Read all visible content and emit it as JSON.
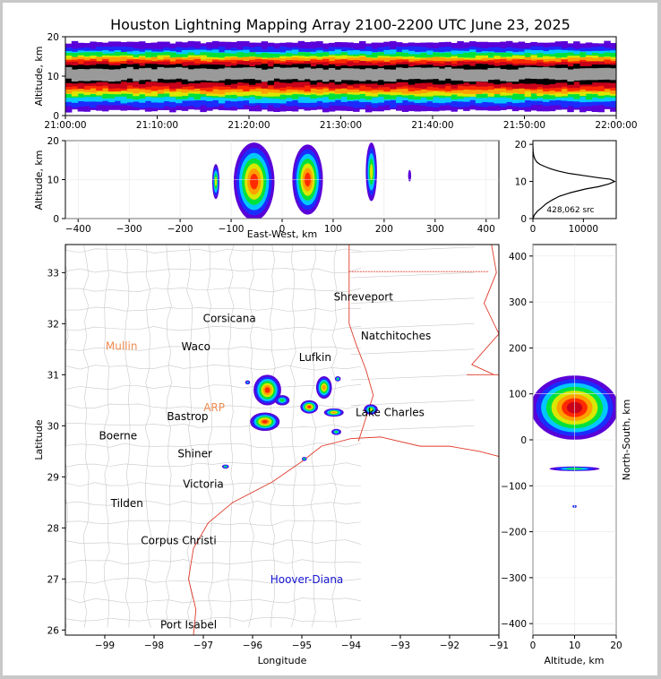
{
  "title": "Houston Lightning Mapping Array 2100-2200 UTC June 23, 2025",
  "colors": {
    "frame": "#c8c8c8",
    "density_scale": [
      "#5a00d8",
      "#1b2cff",
      "#00c8ff",
      "#00e23a",
      "#d8e800",
      "#ff9f00",
      "#ff2a00",
      "#c8001a",
      "#000000",
      "#9a9a9a"
    ],
    "city_black": "#000000",
    "city_orange": "#f08c50",
    "city_blue": "#1414d2",
    "state_border": "#e03a2a",
    "county_lines": "#c9c9c9"
  },
  "chart_data": [
    {
      "id": "time-height",
      "type": "heatmap",
      "xlabel": "",
      "ylabel": "Altitude, km",
      "x_ticks": [
        "21:00:00",
        "21:10:00",
        "21:20:00",
        "21:30:00",
        "21:40:00",
        "21:50:00",
        "22:00:00"
      ],
      "xlim": [
        "21:00:00",
        "22:00:00"
      ],
      "y_ticks": [
        0,
        10,
        20
      ],
      "ylim": [
        0,
        20
      ],
      "bands": [
        {
          "from": 1.2,
          "to": 18.6,
          "level": 0
        },
        {
          "from": 2.3,
          "to": 17.2,
          "level": 1
        },
        {
          "from": 3.5,
          "to": 16.4,
          "level": 2
        },
        {
          "from": 4.4,
          "to": 15.8,
          "level": 3
        },
        {
          "from": 5.2,
          "to": 15.0,
          "level": 4
        },
        {
          "from": 5.8,
          "to": 14.6,
          "level": 5
        },
        {
          "from": 6.5,
          "to": 14.0,
          "level": 6
        },
        {
          "from": 7.2,
          "to": 13.5,
          "level": 7
        },
        {
          "from": 8.2,
          "to": 12.8,
          "level": 8
        },
        {
          "from": 9.0,
          "to": 12.0,
          "level": 9
        }
      ]
    },
    {
      "id": "ew-altitude",
      "type": "heatmap",
      "xlabel": "East-West, km",
      "ylabel": "Altitude, km",
      "x_ticks": [
        -400,
        -300,
        -200,
        -100,
        0,
        100,
        200,
        300,
        400
      ],
      "xlim": [
        -425,
        425
      ],
      "y_ticks": [
        0,
        10,
        20
      ],
      "ylim": [
        0,
        20
      ],
      "cells": [
        {
          "x": -130,
          "y": 9.5,
          "w": 14,
          "h": 9,
          "level": 4
        },
        {
          "x": -55,
          "y": 9.5,
          "w": 80,
          "h": 20,
          "level": 6
        },
        {
          "x": 50,
          "y": 10,
          "w": 60,
          "h": 18,
          "level": 6
        },
        {
          "x": 175,
          "y": 12,
          "w": 22,
          "h": 15,
          "level": 4
        },
        {
          "x": 250,
          "y": 11,
          "w": 6,
          "h": 3,
          "level": 0
        }
      ]
    },
    {
      "id": "altitude-histogram",
      "type": "line",
      "xlabel": "",
      "ylabel": "",
      "x_ticks": [
        0,
        10000
      ],
      "xlim": [
        0,
        16500
      ],
      "y_ticks": [
        0,
        10,
        20
      ],
      "ylim": [
        0,
        21
      ],
      "annotation": "428,062 src",
      "x": [
        0,
        300,
        900,
        1800,
        2600,
        3800,
        5200,
        7500,
        10500,
        13000,
        15000,
        16200,
        15300,
        13000,
        10000,
        7000,
        5000,
        3500,
        2400,
        1400,
        800,
        400,
        150,
        40,
        5
      ],
      "y": [
        0,
        1,
        2,
        3,
        4,
        5,
        6,
        7,
        8,
        8.6,
        9.3,
        10,
        10.6,
        11,
        11.6,
        12.2,
        12.8,
        13.4,
        14,
        14.6,
        15.2,
        16,
        17,
        18,
        19.5
      ]
    },
    {
      "id": "plan-view-map",
      "type": "scatter",
      "xlabel": "Longitude",
      "ylabel": "Latitude",
      "x_ticks": [
        -99,
        -98,
        -97,
        -96,
        -95,
        -94,
        -93,
        -92,
        -91
      ],
      "xlim": [
        -99.8,
        -91
      ],
      "y_ticks": [
        26,
        27,
        28,
        29,
        30,
        31,
        32,
        33
      ],
      "ylim": [
        25.9,
        33.55
      ],
      "storms": [
        {
          "lon": -95.7,
          "lat": 30.7,
          "rx": 0.28,
          "ry": 0.3,
          "level": 6
        },
        {
          "lon": -95.75,
          "lat": 30.08,
          "rx": 0.3,
          "ry": 0.18,
          "level": 6
        },
        {
          "lon": -95.4,
          "lat": 30.5,
          "rx": 0.15,
          "ry": 0.1,
          "level": 3
        },
        {
          "lon": -94.85,
          "lat": 30.37,
          "rx": 0.18,
          "ry": 0.13,
          "level": 6
        },
        {
          "lon": -94.55,
          "lat": 30.75,
          "rx": 0.16,
          "ry": 0.22,
          "level": 5
        },
        {
          "lon": -94.35,
          "lat": 30.26,
          "rx": 0.2,
          "ry": 0.08,
          "level": 5
        },
        {
          "lon": -93.6,
          "lat": 30.32,
          "rx": 0.14,
          "ry": 0.1,
          "level": 4
        },
        {
          "lon": -94.27,
          "lat": 30.92,
          "rx": 0.06,
          "ry": 0.05,
          "level": 3
        },
        {
          "lon": -94.3,
          "lat": 29.88,
          "rx": 0.1,
          "ry": 0.06,
          "level": 3
        },
        {
          "lon": -96.55,
          "lat": 29.2,
          "rx": 0.07,
          "ry": 0.04,
          "level": 3
        },
        {
          "lon": -96.1,
          "lat": 30.85,
          "rx": 0.05,
          "ry": 0.04,
          "level": 2
        },
        {
          "lon": -94.95,
          "lat": 29.35,
          "rx": 0.05,
          "ry": 0.04,
          "level": 3
        }
      ],
      "cities": [
        {
          "name": "Shreveport",
          "lon": -93.75,
          "lat": 32.52,
          "color": "black"
        },
        {
          "name": "Corsicana",
          "lon": -96.47,
          "lat": 32.1,
          "color": "black"
        },
        {
          "name": "Mullin",
          "lon": -98.66,
          "lat": 31.56,
          "color": "orange"
        },
        {
          "name": "Waco",
          "lon": -97.15,
          "lat": 31.55,
          "color": "black"
        },
        {
          "name": "Natchitoches",
          "lon": -93.09,
          "lat": 31.76,
          "color": "black"
        },
        {
          "name": "Lufkin",
          "lon": -94.73,
          "lat": 31.34,
          "color": "black"
        },
        {
          "name": "ARP",
          "lon": -96.78,
          "lat": 30.36,
          "color": "orange"
        },
        {
          "name": "Bastrop",
          "lon": -97.32,
          "lat": 30.18,
          "color": "black"
        },
        {
          "name": "Lake Charles",
          "lon": -93.21,
          "lat": 30.26,
          "color": "black"
        },
        {
          "name": "Boerne",
          "lon": -98.73,
          "lat": 29.8,
          "color": "black"
        },
        {
          "name": "Shiner",
          "lon": -97.17,
          "lat": 29.45,
          "color": "black"
        },
        {
          "name": "Victoria",
          "lon": -97.0,
          "lat": 28.86,
          "color": "black"
        },
        {
          "name": "Tilden",
          "lon": -98.55,
          "lat": 28.48,
          "color": "black"
        },
        {
          "name": "Corpus Christi",
          "lon": -97.5,
          "lat": 27.75,
          "color": "black"
        },
        {
          "name": "Hoover-Diana",
          "lon": -94.9,
          "lat": 26.99,
          "color": "blue"
        },
        {
          "name": "Port Isabel",
          "lon": -97.3,
          "lat": 26.1,
          "color": "black"
        }
      ]
    },
    {
      "id": "ns-altitude",
      "type": "heatmap",
      "xlabel": "Altitude, km",
      "ylabel": "North-South, km",
      "x_ticks": [
        0,
        10,
        20
      ],
      "xlim": [
        0,
        20
      ],
      "y_ticks": [
        -400,
        -300,
        -200,
        -100,
        0,
        100,
        200,
        300,
        400
      ],
      "ylim": [
        -425,
        425
      ],
      "cells": [
        {
          "x": 10,
          "y": 70,
          "w": 21,
          "h": 140,
          "level": 7
        },
        {
          "x": 10,
          "y": -63,
          "w": 12,
          "h": 10,
          "level": 3
        },
        {
          "x": 10,
          "y": -145,
          "w": 1,
          "h": 6,
          "level": 2
        }
      ]
    }
  ]
}
